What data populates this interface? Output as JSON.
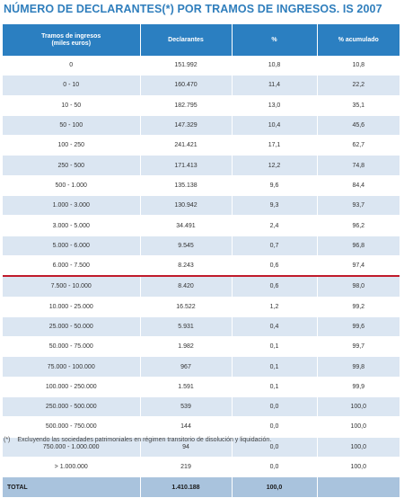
{
  "title": "NÚMERO DE DECLARANTES(*) POR TRAMOS DE INGRESOS. IS 2007",
  "headers": {
    "tramos_line1": "Tramos de ingresos",
    "tramos_line2": "(miles euros)",
    "declarantes": "Declarantes",
    "pct": "%",
    "pct_acum": "% acumulado"
  },
  "rows": [
    {
      "tramo": "0",
      "declarantes": "151.992",
      "pct": "10,8",
      "acum": "10,8"
    },
    {
      "tramo": "0 - 10",
      "declarantes": "160.470",
      "pct": "11,4",
      "acum": "22,2"
    },
    {
      "tramo": "10 - 50",
      "declarantes": "182.795",
      "pct": "13,0",
      "acum": "35,1"
    },
    {
      "tramo": "50 - 100",
      "declarantes": "147.329",
      "pct": "10,4",
      "acum": "45,6"
    },
    {
      "tramo": "100 - 250",
      "declarantes": "241.421",
      "pct": "17,1",
      "acum": "62,7"
    },
    {
      "tramo": "250 - 500",
      "declarantes": "171.413",
      "pct": "12,2",
      "acum": "74,8"
    },
    {
      "tramo": "500 - 1.000",
      "declarantes": "135.138",
      "pct": "9,6",
      "acum": "84,4"
    },
    {
      "tramo": "1.000 - 3.000",
      "declarantes": "130.942",
      "pct": "9,3",
      "acum": "93,7"
    },
    {
      "tramo": "3.000 - 5.000",
      "declarantes": "34.491",
      "pct": "2,4",
      "acum": "96,2"
    },
    {
      "tramo": "5.000 - 6.000",
      "declarantes": "9.545",
      "pct": "0,7",
      "acum": "96,8"
    },
    {
      "tramo": "6.000 - 7.500",
      "declarantes": "8.243",
      "pct": "0,6",
      "acum": "97,4"
    },
    {
      "tramo": "7.500 - 10.000",
      "declarantes": "8.420",
      "pct": "0,6",
      "acum": "98,0"
    },
    {
      "tramo": "10.000 - 25.000",
      "declarantes": "16.522",
      "pct": "1,2",
      "acum": "99,2"
    },
    {
      "tramo": "25.000 - 50.000",
      "declarantes": "5.931",
      "pct": "0,4",
      "acum": "99,6"
    },
    {
      "tramo": "50.000 - 75.000",
      "declarantes": "1.982",
      "pct": "0,1",
      "acum": "99,7"
    },
    {
      "tramo": "75.000 - 100.000",
      "declarantes": "967",
      "pct": "0,1",
      "acum": "99,8"
    },
    {
      "tramo": "100.000 - 250.000",
      "declarantes": "1.591",
      "pct": "0,1",
      "acum": "99,9"
    },
    {
      "tramo": "250.000 - 500.000",
      "declarantes": "539",
      "pct": "0,0",
      "acum": "100,0"
    },
    {
      "tramo": "500.000 - 750.000",
      "declarantes": "144",
      "pct": "0,0",
      "acum": "100,0"
    },
    {
      "tramo": "750.000 - 1.000.000",
      "declarantes": "94",
      "pct": "0,0",
      "acum": "100,0"
    },
    {
      "tramo": "> 1.000.000",
      "declarantes": "219",
      "pct": "0,0",
      "acum": "100,0"
    }
  ],
  "total": {
    "label": "TOTAL",
    "declarantes": "1.410.188",
    "pct": "100,0",
    "acum": ""
  },
  "footnote": {
    "mark": "(*)",
    "text": "Excluyendo las sociedades patrimoniales en régimen transitorio de disolución y liquidación."
  },
  "colors": {
    "header": "#2b7fc1",
    "title": "#2f7ebc",
    "band": "#dbe6f2",
    "total": "#a9c3dd",
    "divider": "#c01b2b"
  }
}
